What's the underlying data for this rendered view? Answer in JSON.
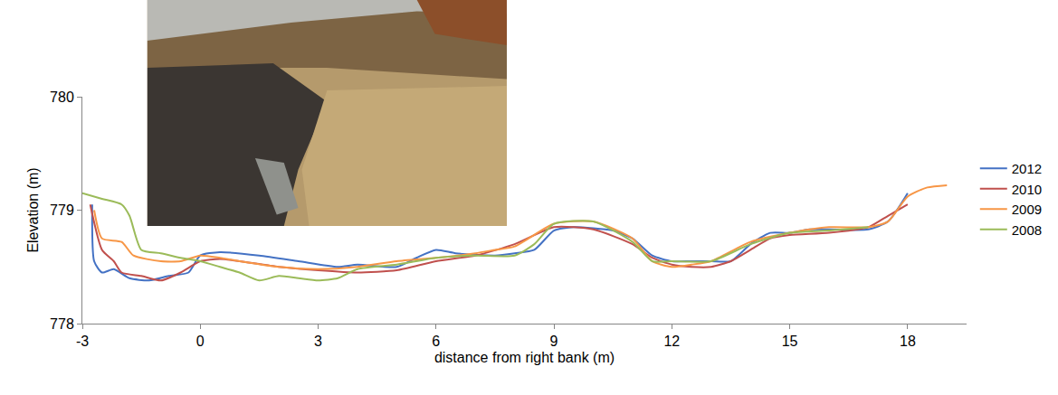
{
  "chart_data": {
    "type": "line",
    "x_label": "distance from right bank (m)",
    "y_label": "Elevation (m)",
    "xlim": [
      -3,
      19.5
    ],
    "xticks": [
      -3,
      0,
      3,
      6,
      9,
      12,
      15,
      18
    ],
    "ylim": [
      778,
      780
    ],
    "yticks": [
      778,
      779,
      780
    ],
    "grid": false,
    "legend": "right",
    "series": [
      {
        "name": "2012",
        "color": "#4472C4",
        "x": [
          -2.75,
          -2.7,
          -2.5,
          -2.2,
          -1.8,
          -1.3,
          -0.8,
          -0.3,
          0,
          0.5,
          1.5,
          2.5,
          3.5,
          4,
          5,
          5.5,
          6,
          6.5,
          7.5,
          8,
          8.5,
          9,
          9.5,
          10.5,
          11,
          11.5,
          12,
          12.5,
          13,
          13.5,
          14,
          14.5,
          15,
          15.5,
          16,
          17,
          17.5,
          18
        ],
        "values": [
          779.05,
          778.55,
          778.45,
          778.48,
          778.4,
          778.38,
          778.42,
          778.45,
          778.6,
          778.63,
          778.6,
          778.55,
          778.5,
          778.52,
          778.5,
          778.58,
          778.65,
          778.62,
          778.6,
          778.62,
          778.65,
          778.82,
          778.85,
          778.82,
          778.75,
          778.6,
          778.55,
          778.55,
          778.55,
          778.55,
          778.7,
          778.8,
          778.8,
          778.83,
          778.83,
          778.83,
          778.9,
          779.15
        ]
      },
      {
        "name": "2010",
        "color": "#C0504D",
        "x": [
          -2.8,
          -2.5,
          -2.2,
          -2,
          -1.5,
          -1,
          -0.5,
          0,
          0.5,
          1,
          2,
          3,
          4,
          5,
          6,
          7,
          8,
          9,
          10,
          11,
          11.5,
          12,
          12.5,
          13,
          13.5,
          14,
          14.5,
          15,
          16,
          17,
          17.5,
          18
        ],
        "values": [
          779.05,
          778.65,
          778.55,
          778.45,
          778.42,
          778.38,
          778.45,
          778.55,
          778.57,
          778.55,
          778.5,
          778.47,
          778.45,
          778.47,
          778.55,
          778.6,
          778.7,
          778.85,
          778.83,
          778.7,
          778.58,
          778.52,
          778.5,
          778.5,
          778.55,
          778.65,
          778.75,
          778.78,
          778.8,
          778.85,
          778.95,
          779.05
        ]
      },
      {
        "name": "2009",
        "color": "#F79646",
        "x": [
          -2.7,
          -2.5,
          -2,
          -1.7,
          -1,
          -0.5,
          0,
          0.5,
          1,
          2,
          3,
          4,
          5,
          6,
          7,
          7.5,
          8,
          9,
          10,
          11,
          11.5,
          12,
          12.5,
          13,
          14,
          15,
          16,
          17,
          17.5,
          18,
          18.5,
          19
        ],
        "values": [
          779.0,
          778.75,
          778.72,
          778.6,
          778.55,
          778.55,
          778.6,
          778.58,
          778.55,
          778.5,
          778.48,
          778.5,
          778.55,
          778.58,
          778.62,
          778.65,
          778.68,
          778.88,
          778.9,
          778.75,
          778.55,
          778.5,
          778.52,
          778.55,
          778.72,
          778.8,
          778.85,
          778.85,
          778.9,
          779.12,
          779.2,
          779.22
        ]
      },
      {
        "name": "2008",
        "color": "#9BBB59",
        "x": [
          -3,
          -2.5,
          -2,
          -1.8,
          -1.5,
          -1,
          -0.5,
          0,
          0.5,
          1,
          1.5,
          2,
          2.5,
          3,
          3.5,
          4,
          5,
          6,
          7,
          8,
          8.5,
          9,
          10,
          11,
          11.5,
          12,
          13,
          14,
          15,
          16,
          17
        ],
        "values": [
          779.15,
          779.1,
          779.05,
          778.95,
          778.65,
          778.62,
          778.58,
          778.55,
          778.5,
          778.45,
          778.38,
          778.42,
          778.4,
          778.38,
          778.4,
          778.48,
          778.52,
          778.58,
          778.6,
          778.6,
          778.7,
          778.88,
          778.9,
          778.72,
          778.55,
          778.55,
          778.55,
          778.7,
          778.8,
          778.82,
          778.85
        ]
      }
    ]
  }
}
